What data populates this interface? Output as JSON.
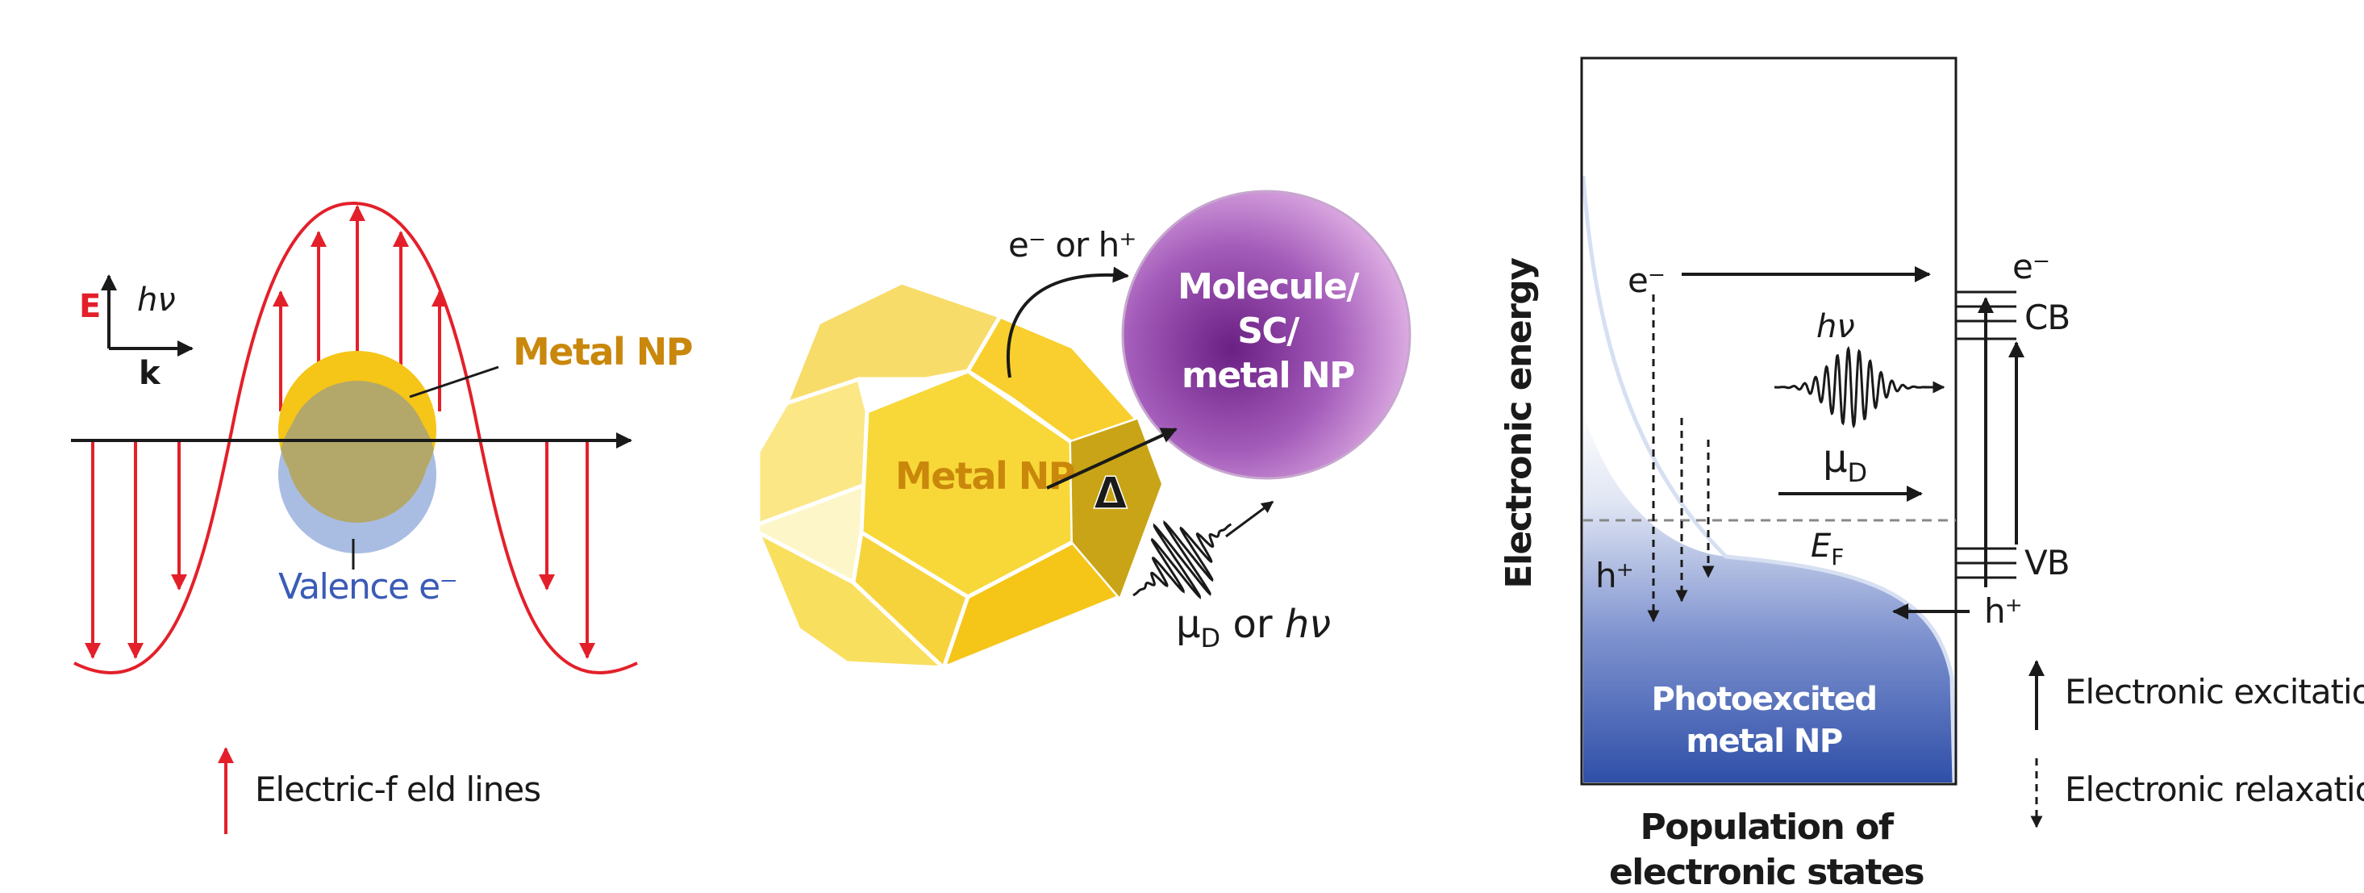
{
  "panel_a": {
    "axis_e": "E",
    "axis_hv": "hν",
    "axis_k": "k",
    "metal_np_label": "Metal NP",
    "valence_label": "Valence e⁻",
    "legend_label": "Electric-f eld lines",
    "colors": {
      "field": "#e3202a",
      "np_gold": "#f5c518",
      "np_blue": "#a9bde3",
      "overlap": "#b3a86a",
      "np_text": "#c9870c",
      "valence_text": "#3a5bb7"
    }
  },
  "panel_b": {
    "transfer_label": "e⁻ or h⁺",
    "metal_np_label": "Metal NP",
    "delta_label": "Δ",
    "sphere_line1": "Molecule/",
    "sphere_line2": "SC/",
    "sphere_line3": "metal NP",
    "mu_base": "μ",
    "mu_sub": "D",
    "mu_tail_or": " or ",
    "mu_tail_hv": "hν",
    "colors": {
      "sphere": "#8b3a9e",
      "np_face": "#f7d84a",
      "np_dark": "#c9a416"
    }
  },
  "panel_c": {
    "y_axis_label": "Electronic energy",
    "x_axis_line1": "Population of",
    "x_axis_line2": "electronic states",
    "electron_label": "e⁻",
    "hole_label": "h⁺",
    "hv_label": "hν",
    "mu_base": "μ",
    "mu_sub": "D",
    "ef_base": "E",
    "ef_sub": "F",
    "photo_line1": "Photoexcited",
    "photo_line2": "metal NP",
    "cb_electron": "e⁻",
    "cb_label": "CB",
    "vb_label": "VB",
    "vb_hole": "h⁺",
    "legend_excitation": "Electronic excitation",
    "legend_relaxation": "Electronic relaxation",
    "colors": {
      "fill_top": "#ffffff",
      "fill_bottom": "#2f4fa8"
    }
  }
}
